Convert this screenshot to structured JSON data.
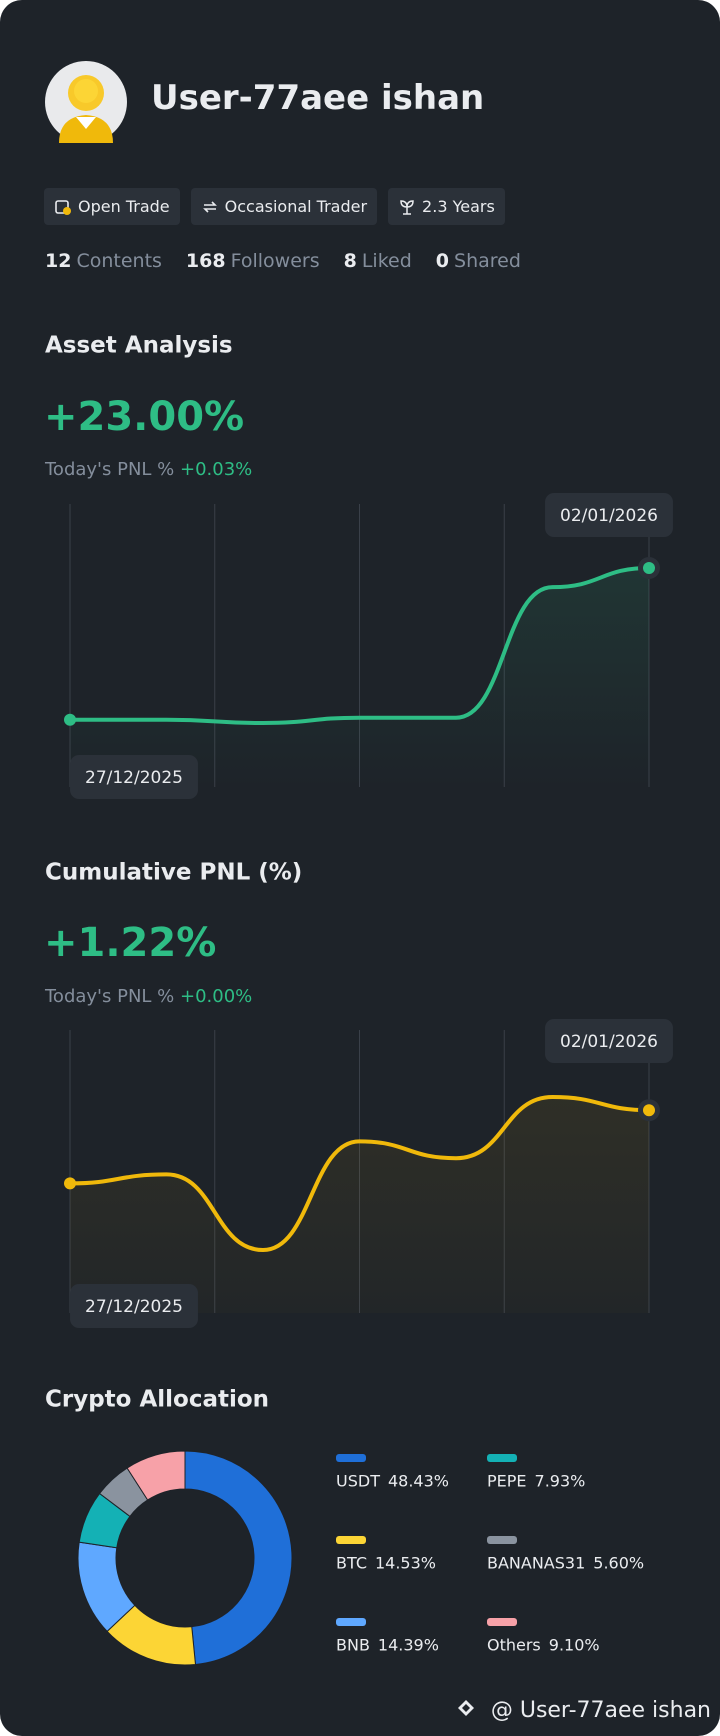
{
  "profile": {
    "name": "User-77aee ishan",
    "tags": [
      "Open Trade",
      "Occasional Trader",
      "2.3 Years"
    ],
    "stats": [
      {
        "count": 12,
        "label": "Contents"
      },
      {
        "count": 168,
        "label": "Followers"
      },
      {
        "count": 8,
        "label": "Liked"
      },
      {
        "count": 0,
        "label": "Shared"
      }
    ]
  },
  "chart_data": [
    {
      "type": "line",
      "title": "Asset Analysis",
      "summary_value": "+23.00%",
      "today_label": "Today's PNL %",
      "today_value": "+0.03%",
      "categories": [
        "27/12/2025",
        null,
        null,
        null,
        null,
        null,
        "02/01/2026"
      ],
      "values": [
        0,
        0,
        -0.5,
        0.3,
        0.3,
        20.1,
        23.0
      ],
      "color": "#2ebd85"
    },
    {
      "type": "line",
      "title": "Cumulative PNL (%)",
      "summary_value": "+1.22%",
      "today_label": "Today's PNL %",
      "today_value": "+0.00%",
      "categories": [
        "27/12/2025",
        null,
        null,
        null,
        null,
        null,
        "02/01/2026"
      ],
      "values": [
        0,
        0.15,
        -1.11,
        0.7,
        0.42,
        1.44,
        1.22
      ],
      "color": "#f0b90b"
    },
    {
      "type": "donut",
      "title": "Crypto Allocation",
      "categories": [
        "USDT",
        "BTC",
        "BNB",
        "PEPE",
        "BANANAS31",
        "Others"
      ],
      "values": [
        48.43,
        14.53,
        14.39,
        7.93,
        5.6,
        9.1
      ],
      "value_labels": [
        "48.43%",
        "14.53%",
        "14.39%",
        "7.93%",
        "5.60%",
        "9.10%"
      ],
      "colors": [
        "#1f6fd8",
        "#fcd535",
        "#5fa8ff",
        "#14b1b5",
        "#8a939f",
        "#f7a1a8"
      ]
    }
  ],
  "watermark": "@ User-77aee ishan"
}
